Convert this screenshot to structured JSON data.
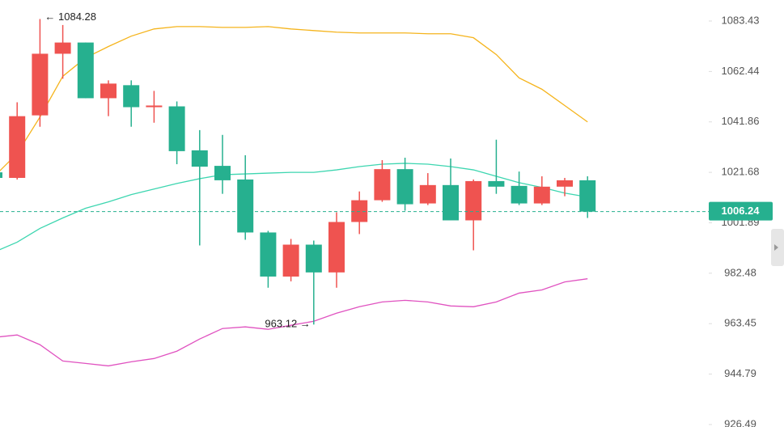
{
  "chart_data": {
    "type": "candlestick",
    "log_scale": true,
    "ylim": [
      925.6,
      1092.3
    ],
    "yticks": [
      1083.43,
      1062.44,
      1041.86,
      1021.68,
      1001.89,
      982.48,
      963.45,
      944.79,
      926.49
    ],
    "categories": [
      null,
      null,
      null,
      null,
      null,
      null,
      null,
      null,
      null,
      null,
      null,
      null,
      null,
      null,
      null,
      null,
      null,
      null,
      null,
      null,
      null,
      null,
      null,
      null,
      null,
      null,
      null
    ],
    "up_color": "#ef5350",
    "down_color": "#26b08f",
    "open": [
      1021.68,
      1019.48,
      1044.51,
      1069.77,
      1074.43,
      1051.48,
      1056.8,
      1047.83,
      1048.16,
      1030.44,
      1024.25,
      1018.85,
      998.13,
      981.21,
      993.43,
      982.79,
      1002.2,
      1010.69,
      1022.95,
      1009.43,
      1016.65,
      1002.83,
      1018.22,
      1016.33,
      1009.43,
      1016.02,
      1018.54
    ],
    "high": [
      1021.68,
      1049.82,
      1084.28,
      1081.76,
      1074.43,
      1058.79,
      1058.79,
      1054.47,
      1050.16,
      1038.56,
      1036.63,
      1028.48,
      998.76,
      995.63,
      995.0,
      1005.98,
      1014.14,
      1026.54,
      1027.5,
      1021.37,
      1027.18,
      1018.85,
      1034.7,
      1021.99,
      1020.11,
      1019.48,
      1020.11
    ],
    "low": [
      1019.48,
      1018.85,
      1039.91,
      1059.45,
      1051.48,
      1044.18,
      1039.91,
      1041.53,
      1024.91,
      993.12,
      1013.2,
      995.31,
      976.97,
      979.39,
      963.12,
      976.97,
      997.51,
      1010.06,
      1006.6,
      1008.8,
      1002.83,
      991.24,
      1013.2,
      1008.8,
      1008.8,
      1012.26,
      1003.77
    ],
    "close": [
      1019.48,
      1044.18,
      1069.77,
      1074.43,
      1051.48,
      1057.46,
      1047.83,
      1048.5,
      1030.11,
      1023.93,
      1018.54,
      998.13,
      981.21,
      993.43,
      982.79,
      1002.2,
      1010.69,
      1022.95,
      1009.12,
      1016.65,
      1002.83,
      1018.22,
      1016.02,
      1009.43,
      1016.02,
      1018.54,
      1006.24
    ],
    "series": [
      {
        "color": "#f5b41c",
        "values": [
          1020.11,
          1029.17,
          1043.85,
          1060.45,
          1068.1,
          1072.77,
          1077.1,
          1080.1,
          1081.1,
          1081.1,
          1080.76,
          1080.76,
          1081.1,
          1080.1,
          1079.43,
          1078.77,
          1078.43,
          1078.43,
          1078.43,
          1078.1,
          1078.1,
          1076.43,
          1069.44,
          1059.79,
          1055.14,
          1048.5,
          1041.86
        ]
      },
      {
        "color": "#3dd6b0",
        "values": [
          990.62,
          994.38,
          999.7,
          1003.77,
          1007.55,
          1010.06,
          1012.89,
          1015.08,
          1017.28,
          1019.17,
          1020.74,
          1021.05,
          1021.37,
          1021.68,
          1021.68,
          1022.66,
          1023.96,
          1024.93,
          1025.26,
          1024.93,
          1023.96,
          1022.66,
          1020.11,
          1017.6,
          1015.71,
          1013.51,
          1011.94
        ]
      },
      {
        "color": "#e052c0",
        "values": [
          958.33,
          959.24,
          955.62,
          949.6,
          948.7,
          947.8,
          949.3,
          950.51,
          953.22,
          957.73,
          961.64,
          962.25,
          961.34,
          962.85,
          964.35,
          967.37,
          969.79,
          971.6,
          972.21,
          971.6,
          970.09,
          969.79,
          971.6,
          974.93,
          976.14,
          979.16,
          980.37
        ]
      }
    ],
    "last_price": {
      "value": 1006.24,
      "color": "#26b08f"
    },
    "annotations": [
      {
        "label": "← 1084.28",
        "value": 1084.28
      },
      {
        "label": "963.12 →",
        "value": 963.12
      }
    ]
  }
}
